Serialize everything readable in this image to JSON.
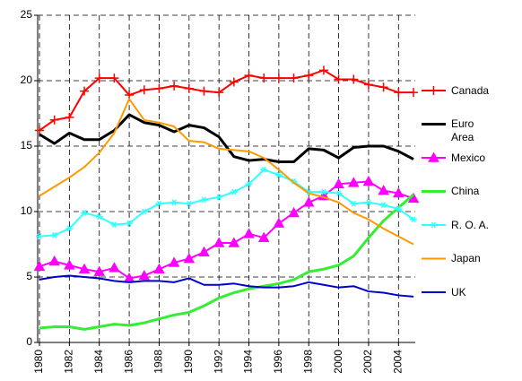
{
  "chart_data": {
    "type": "line",
    "x": [
      1980,
      1981,
      1982,
      1983,
      1984,
      1985,
      1986,
      1987,
      1988,
      1989,
      1990,
      1991,
      1992,
      1993,
      1994,
      1995,
      1996,
      1997,
      1998,
      1999,
      2000,
      2001,
      2002,
      2003,
      2004,
      2005
    ],
    "xlim": [
      1980,
      2005
    ],
    "xticks": [
      1980,
      1982,
      1984,
      1986,
      1988,
      1990,
      1992,
      1994,
      1996,
      1998,
      2000,
      2002,
      2004
    ],
    "ylim": [
      0,
      25
    ],
    "yticks": [
      0,
      5,
      10,
      15,
      20,
      25
    ],
    "grid": true,
    "legend": "right",
    "series": [
      {
        "name": "Canada",
        "color": "#ff0000",
        "marker": "plus",
        "linewidth": 2,
        "values": [
          16.2,
          17.0,
          17.2,
          19.2,
          20.2,
          20.2,
          18.9,
          19.3,
          19.4,
          19.6,
          19.4,
          19.2,
          19.1,
          19.9,
          20.4,
          20.2,
          20.2,
          20.2,
          20.4,
          20.8,
          20.1,
          20.1,
          19.7,
          19.5,
          19.1,
          19.1
        ]
      },
      {
        "name": "Euro Area",
        "color": "#000000",
        "marker": null,
        "linewidth": 3,
        "values": [
          15.9,
          15.2,
          16.0,
          15.5,
          15.5,
          16.2,
          17.4,
          16.8,
          16.6,
          16.1,
          16.6,
          16.4,
          15.7,
          14.2,
          13.9,
          14.0,
          13.8,
          13.8,
          14.8,
          14.7,
          14.1,
          14.9,
          15.0,
          15.0,
          14.6,
          14.0
        ]
      },
      {
        "name": "Mexico",
        "color": "#ff00ff",
        "marker": "triangle",
        "linewidth": 2,
        "values": [
          5.8,
          6.2,
          5.9,
          5.6,
          5.4,
          5.7,
          4.9,
          5.1,
          5.6,
          6.1,
          6.4,
          6.9,
          7.6,
          7.6,
          8.3,
          8.0,
          9.1,
          9.9,
          10.7,
          11.2,
          12.1,
          12.2,
          12.3,
          11.6,
          11.4,
          11.0
        ]
      },
      {
        "name": "China",
        "color": "#33ee33",
        "marker": null,
        "linewidth": 3,
        "values": [
          1.1,
          1.2,
          1.2,
          1.0,
          1.2,
          1.4,
          1.3,
          1.5,
          1.8,
          2.1,
          2.3,
          2.8,
          3.4,
          3.8,
          4.1,
          4.3,
          4.5,
          4.8,
          5.4,
          5.6,
          5.9,
          6.6,
          8.0,
          9.3,
          10.3,
          11.3
        ]
      },
      {
        "name": "R. O. A.",
        "color": "#33ffff",
        "marker": "star",
        "linewidth": 2,
        "values": [
          8.1,
          8.2,
          8.7,
          9.9,
          9.6,
          9.0,
          9.1,
          10.0,
          10.6,
          10.7,
          10.6,
          10.9,
          11.1,
          11.5,
          12.1,
          13.2,
          12.8,
          12.3,
          11.5,
          11.5,
          11.4,
          10.6,
          10.7,
          10.5,
          10.2,
          9.4
        ]
      },
      {
        "name": "Japan",
        "color": "#ff9900",
        "marker": null,
        "linewidth": 2,
        "values": [
          11.2,
          11.9,
          12.6,
          13.4,
          14.5,
          16.0,
          18.6,
          17.0,
          16.8,
          16.5,
          15.4,
          15.3,
          14.8,
          14.7,
          14.6,
          14.1,
          13.2,
          12.2,
          11.4,
          11.1,
          10.7,
          9.9,
          9.4,
          8.7,
          8.1,
          7.5
        ]
      },
      {
        "name": "UK",
        "color": "#0000cc",
        "marker": null,
        "linewidth": 2,
        "values": [
          4.8,
          5.0,
          5.1,
          5.0,
          4.9,
          4.7,
          4.6,
          4.7,
          4.7,
          4.6,
          4.9,
          4.4,
          4.4,
          4.5,
          4.3,
          4.2,
          4.2,
          4.3,
          4.6,
          4.4,
          4.2,
          4.3,
          3.9,
          3.8,
          3.6,
          3.5
        ]
      }
    ]
  }
}
